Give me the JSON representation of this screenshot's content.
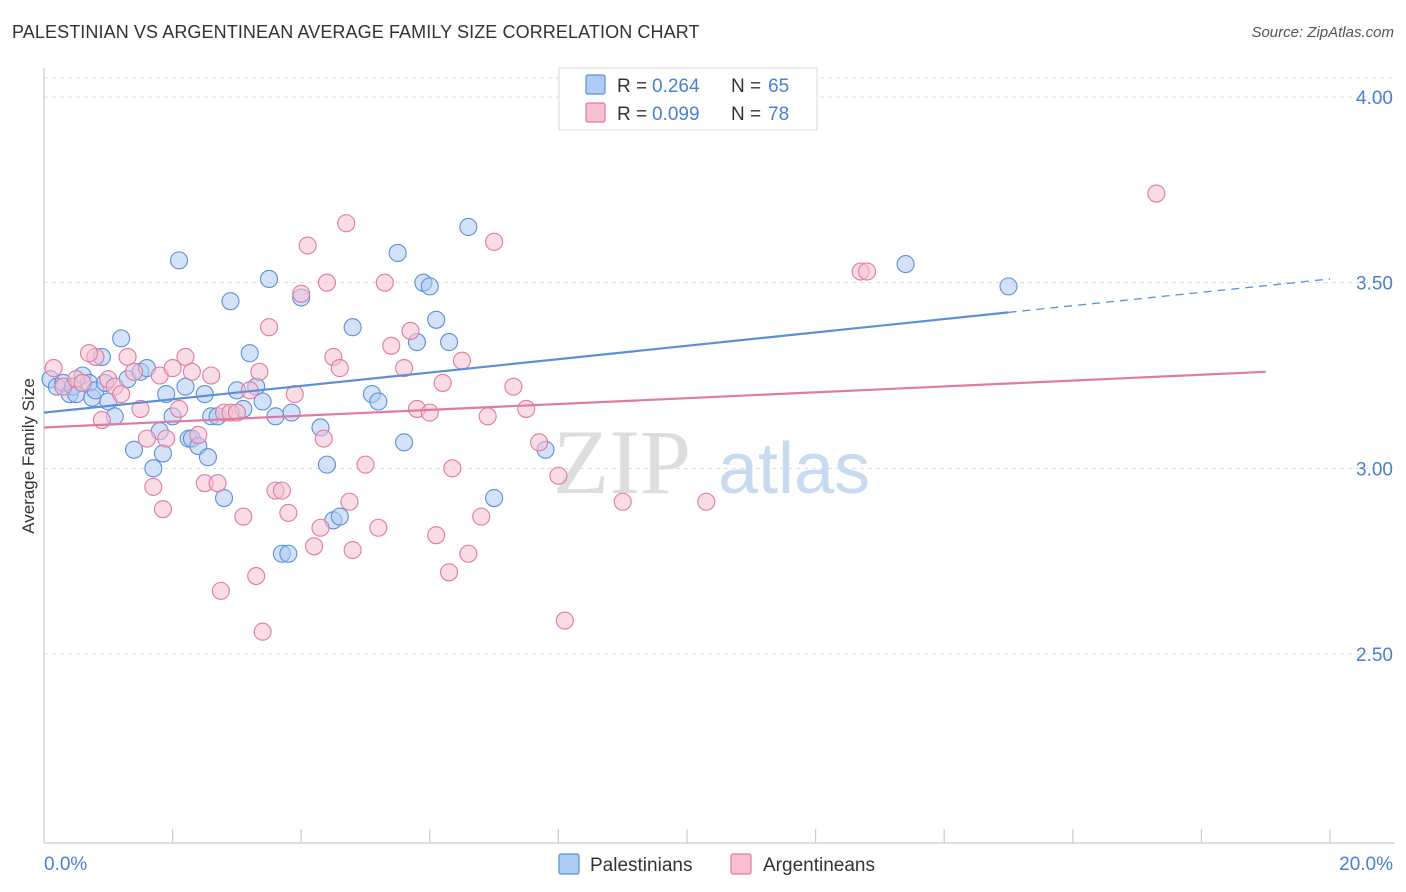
{
  "title": "PALESTINIAN VS ARGENTINEAN AVERAGE FAMILY SIZE CORRELATION CHART",
  "source": "Source: ZipAtlas.com",
  "watermark": {
    "zip": "ZIP",
    "atlas": "atlas"
  },
  "legend": {
    "r_label": "R =",
    "n_label": "N =",
    "rows": [
      {
        "r": "0.264",
        "n": "65",
        "color": "#5b8fd8",
        "fill": "#aecbf2"
      },
      {
        "r": "0.099",
        "n": "78",
        "color": "#e07aa0",
        "fill": "#f6bfd2"
      }
    ]
  },
  "chart_data": {
    "type": "scatter",
    "xlabel": "",
    "ylabel": "Average Family Size",
    "xlim": [
      0,
      20
    ],
    "ylim": [
      2.1,
      4.15
    ],
    "x_tick_labels": [
      "0.0%",
      "20.0%"
    ],
    "y_ticks": [
      2.5,
      3.0,
      3.5,
      4.0
    ],
    "y_tick_labels": [
      "2.50",
      "3.00",
      "3.50",
      "4.00"
    ],
    "grid": true,
    "legend_position": "top-center",
    "series": [
      {
        "name": "Palestinians",
        "color": "#5b8fd8",
        "fill": "#aecbf2",
        "trend": {
          "x0": 0,
          "y0": 3.15,
          "x1": 15.0,
          "y1": 3.42,
          "dash_to_x": 20,
          "dash_to_y": 3.51
        },
        "points": [
          [
            0.1,
            3.24
          ],
          [
            0.2,
            3.22
          ],
          [
            0.3,
            3.23
          ],
          [
            0.4,
            3.2
          ],
          [
            0.45,
            3.22
          ],
          [
            0.5,
            3.2
          ],
          [
            0.6,
            3.25
          ],
          [
            0.7,
            3.23
          ],
          [
            0.75,
            3.19
          ],
          [
            0.8,
            3.21
          ],
          [
            0.9,
            3.3
          ],
          [
            0.95,
            3.23
          ],
          [
            1.0,
            3.18
          ],
          [
            1.1,
            3.14
          ],
          [
            1.2,
            3.35
          ],
          [
            1.3,
            3.24
          ],
          [
            1.4,
            3.05
          ],
          [
            1.5,
            3.26
          ],
          [
            1.6,
            3.27
          ],
          [
            1.7,
            3.0
          ],
          [
            1.8,
            3.1
          ],
          [
            1.85,
            3.04
          ],
          [
            1.9,
            3.2
          ],
          [
            2.0,
            3.14
          ],
          [
            2.1,
            3.56
          ],
          [
            2.2,
            3.22
          ],
          [
            2.25,
            3.08
          ],
          [
            2.3,
            3.08
          ],
          [
            2.4,
            3.06
          ],
          [
            2.5,
            3.2
          ],
          [
            2.55,
            3.03
          ],
          [
            2.6,
            3.14
          ],
          [
            2.7,
            3.14
          ],
          [
            2.8,
            2.92
          ],
          [
            2.9,
            3.45
          ],
          [
            3.0,
            3.21
          ],
          [
            3.1,
            3.16
          ],
          [
            3.2,
            3.31
          ],
          [
            3.3,
            3.22
          ],
          [
            3.4,
            3.18
          ],
          [
            3.5,
            3.51
          ],
          [
            3.6,
            3.14
          ],
          [
            3.7,
            2.77
          ],
          [
            3.8,
            2.77
          ],
          [
            3.85,
            3.15
          ],
          [
            4.0,
            3.46
          ],
          [
            4.3,
            3.11
          ],
          [
            4.4,
            3.01
          ],
          [
            4.5,
            2.86
          ],
          [
            4.6,
            2.87
          ],
          [
            4.8,
            3.38
          ],
          [
            5.1,
            3.2
          ],
          [
            5.2,
            3.18
          ],
          [
            5.5,
            3.58
          ],
          [
            5.6,
            3.07
          ],
          [
            5.9,
            3.5
          ],
          [
            6.0,
            3.49
          ],
          [
            6.1,
            3.4
          ],
          [
            6.3,
            3.34
          ],
          [
            5.8,
            3.34
          ],
          [
            6.6,
            3.65
          ],
          [
            7.0,
            2.92
          ],
          [
            7.8,
            3.05
          ],
          [
            13.4,
            3.55
          ],
          [
            15.0,
            3.49
          ]
        ]
      },
      {
        "name": "Argentineans",
        "color": "#e07aa0",
        "fill": "#f6bfd2",
        "trend": {
          "x0": 0,
          "y0": 3.11,
          "x1": 19.0,
          "y1": 3.26
        },
        "points": [
          [
            0.15,
            3.27
          ],
          [
            0.3,
            3.22
          ],
          [
            0.5,
            3.24
          ],
          [
            0.6,
            3.23
          ],
          [
            0.8,
            3.3
          ],
          [
            0.9,
            3.13
          ],
          [
            1.0,
            3.24
          ],
          [
            1.1,
            3.22
          ],
          [
            1.2,
            3.2
          ],
          [
            1.3,
            3.3
          ],
          [
            1.4,
            3.26
          ],
          [
            1.5,
            3.16
          ],
          [
            1.6,
            3.08
          ],
          [
            1.7,
            2.95
          ],
          [
            1.8,
            3.25
          ],
          [
            1.85,
            2.89
          ],
          [
            1.9,
            3.08
          ],
          [
            2.0,
            3.27
          ],
          [
            2.1,
            3.16
          ],
          [
            2.2,
            3.3
          ],
          [
            2.3,
            3.26
          ],
          [
            2.4,
            3.09
          ],
          [
            2.5,
            2.96
          ],
          [
            2.6,
            3.25
          ],
          [
            2.7,
            2.96
          ],
          [
            2.75,
            2.67
          ],
          [
            2.8,
            3.15
          ],
          [
            2.9,
            3.15
          ],
          [
            3.0,
            3.15
          ],
          [
            3.1,
            2.87
          ],
          [
            3.2,
            3.21
          ],
          [
            3.3,
            2.71
          ],
          [
            3.4,
            2.56
          ],
          [
            3.5,
            3.38
          ],
          [
            3.6,
            2.94
          ],
          [
            3.7,
            2.94
          ],
          [
            3.8,
            2.88
          ],
          [
            3.9,
            3.2
          ],
          [
            4.0,
            3.47
          ],
          [
            4.1,
            3.6
          ],
          [
            4.2,
            2.79
          ],
          [
            4.3,
            2.84
          ],
          [
            4.35,
            3.08
          ],
          [
            4.5,
            3.3
          ],
          [
            4.6,
            3.27
          ],
          [
            4.7,
            3.66
          ],
          [
            4.75,
            2.91
          ],
          [
            4.8,
            2.78
          ],
          [
            5.0,
            3.01
          ],
          [
            5.2,
            2.84
          ],
          [
            5.3,
            3.5
          ],
          [
            5.4,
            3.33
          ],
          [
            5.6,
            3.27
          ],
          [
            5.7,
            3.37
          ],
          [
            5.8,
            3.16
          ],
          [
            6.0,
            3.15
          ],
          [
            6.1,
            2.82
          ],
          [
            6.2,
            3.23
          ],
          [
            6.3,
            2.72
          ],
          [
            6.35,
            3.0
          ],
          [
            6.5,
            3.29
          ],
          [
            6.6,
            2.77
          ],
          [
            6.8,
            2.87
          ],
          [
            6.9,
            3.14
          ],
          [
            7.0,
            3.61
          ],
          [
            7.3,
            3.22
          ],
          [
            7.5,
            3.16
          ],
          [
            7.7,
            3.07
          ],
          [
            8.0,
            2.98
          ],
          [
            8.1,
            2.59
          ],
          [
            9.0,
            2.91
          ],
          [
            10.3,
            2.91
          ],
          [
            12.7,
            3.53
          ],
          [
            12.8,
            3.53
          ],
          [
            17.3,
            3.74
          ],
          [
            4.4,
            3.5
          ],
          [
            3.35,
            3.26
          ],
          [
            0.7,
            3.31
          ]
        ]
      }
    ]
  }
}
